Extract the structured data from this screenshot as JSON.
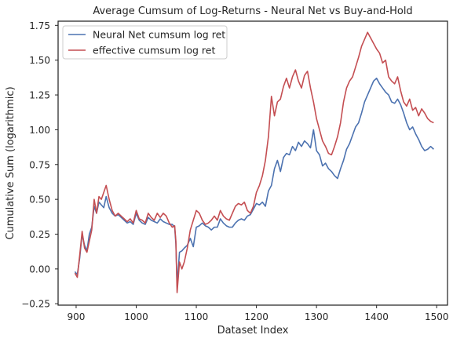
{
  "chart_data": {
    "type": "line",
    "title": "Average Cumsum of Log-Returns - Neural Net vs Buy-and-Hold",
    "xlabel": "Dataset Index",
    "ylabel": "Cumulative Sum (logarithmic)",
    "xlim": [
      870,
      1518
    ],
    "ylim": [
      -0.26,
      1.78
    ],
    "xticks": [
      900,
      1000,
      1100,
      1200,
      1300,
      1400,
      1500
    ],
    "yticks": [
      -0.25,
      0.0,
      0.25,
      0.5,
      0.75,
      1.0,
      1.25,
      1.5,
      1.75
    ],
    "xtick_labels": [
      "900",
      "1000",
      "1100",
      "1200",
      "1300",
      "1400",
      "1500"
    ],
    "ytick_labels": [
      "−0.25",
      "0.00",
      "0.25",
      "0.50",
      "0.75",
      "1.00",
      "1.25",
      "1.50",
      "1.75"
    ],
    "grid": false,
    "legend_position": "top-left",
    "series": [
      {
        "name": "Neural Net cumsum log ret",
        "color": "#4c72b0",
        "x": [
          898,
          902,
          906,
          910,
          914,
          918,
          922,
          926,
          930,
          934,
          938,
          942,
          946,
          950,
          955,
          960,
          965,
          970,
          975,
          980,
          985,
          990,
          995,
          1000,
          1005,
          1010,
          1015,
          1020,
          1025,
          1030,
          1035,
          1040,
          1045,
          1050,
          1055,
          1060,
          1064,
          1066,
          1068,
          1072,
          1076,
          1080,
          1085,
          1090,
          1095,
          1100,
          1105,
          1110,
          1115,
          1120,
          1125,
          1130,
          1135,
          1140,
          1145,
          1150,
          1155,
          1160,
          1165,
          1170,
          1175,
          1180,
          1185,
          1190,
          1195,
          1200,
          1205,
          1210,
          1215,
          1220,
          1225,
          1230,
          1235,
          1240,
          1245,
          1250,
          1255,
          1260,
          1265,
          1270,
          1275,
          1280,
          1285,
          1290,
          1295,
          1300,
          1305,
          1310,
          1315,
          1320,
          1325,
          1330,
          1335,
          1340,
          1345,
          1350,
          1355,
          1360,
          1365,
          1370,
          1375,
          1380,
          1385,
          1390,
          1395,
          1400,
          1405,
          1410,
          1415,
          1420,
          1425,
          1430,
          1435,
          1440,
          1445,
          1450,
          1455,
          1460,
          1465,
          1470,
          1475,
          1480,
          1485,
          1490,
          1495
        ],
        "y": [
          -0.02,
          -0.04,
          0.08,
          0.25,
          0.17,
          0.13,
          0.25,
          0.3,
          0.45,
          0.4,
          0.48,
          0.46,
          0.44,
          0.52,
          0.44,
          0.4,
          0.38,
          0.39,
          0.37,
          0.35,
          0.33,
          0.34,
          0.32,
          0.4,
          0.35,
          0.33,
          0.32,
          0.37,
          0.35,
          0.34,
          0.33,
          0.36,
          0.34,
          0.33,
          0.32,
          0.32,
          0.3,
          0.18,
          -0.12,
          0.12,
          0.13,
          0.15,
          0.17,
          0.22,
          0.16,
          0.3,
          0.31,
          0.33,
          0.31,
          0.3,
          0.28,
          0.3,
          0.3,
          0.36,
          0.33,
          0.31,
          0.3,
          0.3,
          0.33,
          0.35,
          0.36,
          0.35,
          0.38,
          0.39,
          0.43,
          0.47,
          0.46,
          0.48,
          0.45,
          0.56,
          0.6,
          0.72,
          0.78,
          0.7,
          0.8,
          0.83,
          0.82,
          0.88,
          0.85,
          0.91,
          0.88,
          0.92,
          0.9,
          0.87,
          1.0,
          0.85,
          0.82,
          0.74,
          0.76,
          0.72,
          0.7,
          0.67,
          0.65,
          0.72,
          0.78,
          0.86,
          0.9,
          0.96,
          1.02,
          1.05,
          1.12,
          1.2,
          1.25,
          1.3,
          1.35,
          1.37,
          1.33,
          1.3,
          1.27,
          1.25,
          1.2,
          1.19,
          1.22,
          1.18,
          1.12,
          1.05,
          1.0,
          1.02,
          0.97,
          0.93,
          0.88,
          0.85,
          0.86,
          0.88,
          0.86
        ]
      },
      {
        "name": "effective cumsum log ret",
        "color": "#c44e52",
        "x": [
          898,
          902,
          906,
          910,
          914,
          918,
          922,
          926,
          930,
          934,
          938,
          942,
          946,
          950,
          955,
          960,
          965,
          970,
          975,
          980,
          985,
          990,
          995,
          1000,
          1005,
          1010,
          1015,
          1020,
          1025,
          1030,
          1035,
          1040,
          1045,
          1050,
          1055,
          1060,
          1064,
          1066,
          1068,
          1072,
          1076,
          1080,
          1085,
          1090,
          1095,
          1100,
          1105,
          1110,
          1115,
          1120,
          1125,
          1130,
          1135,
          1140,
          1145,
          1150,
          1155,
          1160,
          1165,
          1170,
          1175,
          1180,
          1185,
          1190,
          1195,
          1200,
          1205,
          1210,
          1215,
          1220,
          1225,
          1230,
          1235,
          1240,
          1245,
          1250,
          1255,
          1260,
          1265,
          1270,
          1275,
          1280,
          1285,
          1290,
          1295,
          1300,
          1305,
          1310,
          1315,
          1320,
          1325,
          1330,
          1335,
          1340,
          1345,
          1350,
          1355,
          1360,
          1365,
          1370,
          1375,
          1380,
          1385,
          1390,
          1395,
          1400,
          1405,
          1410,
          1415,
          1420,
          1425,
          1430,
          1435,
          1440,
          1445,
          1450,
          1455,
          1460,
          1465,
          1470,
          1475,
          1480,
          1485,
          1490,
          1495
        ],
        "y": [
          -0.03,
          -0.06,
          0.1,
          0.27,
          0.15,
          0.12,
          0.2,
          0.28,
          0.5,
          0.4,
          0.52,
          0.5,
          0.55,
          0.6,
          0.5,
          0.42,
          0.38,
          0.4,
          0.38,
          0.36,
          0.34,
          0.36,
          0.33,
          0.42,
          0.36,
          0.35,
          0.33,
          0.4,
          0.37,
          0.35,
          0.4,
          0.37,
          0.4,
          0.38,
          0.33,
          0.3,
          0.31,
          0.2,
          -0.17,
          0.05,
          0.0,
          0.05,
          0.15,
          0.28,
          0.35,
          0.42,
          0.4,
          0.35,
          0.32,
          0.33,
          0.35,
          0.38,
          0.35,
          0.42,
          0.38,
          0.36,
          0.35,
          0.4,
          0.45,
          0.47,
          0.46,
          0.48,
          0.42,
          0.4,
          0.45,
          0.55,
          0.6,
          0.67,
          0.78,
          0.95,
          1.24,
          1.1,
          1.2,
          1.22,
          1.31,
          1.37,
          1.3,
          1.38,
          1.43,
          1.35,
          1.3,
          1.39,
          1.42,
          1.3,
          1.2,
          1.08,
          1.0,
          0.92,
          0.88,
          0.83,
          0.82,
          0.88,
          0.95,
          1.05,
          1.2,
          1.3,
          1.35,
          1.38,
          1.45,
          1.52,
          1.6,
          1.65,
          1.7,
          1.66,
          1.62,
          1.58,
          1.55,
          1.48,
          1.5,
          1.38,
          1.35,
          1.33,
          1.38,
          1.28,
          1.2,
          1.17,
          1.22,
          1.14,
          1.16,
          1.1,
          1.15,
          1.12,
          1.08,
          1.06,
          1.05
        ]
      }
    ]
  }
}
